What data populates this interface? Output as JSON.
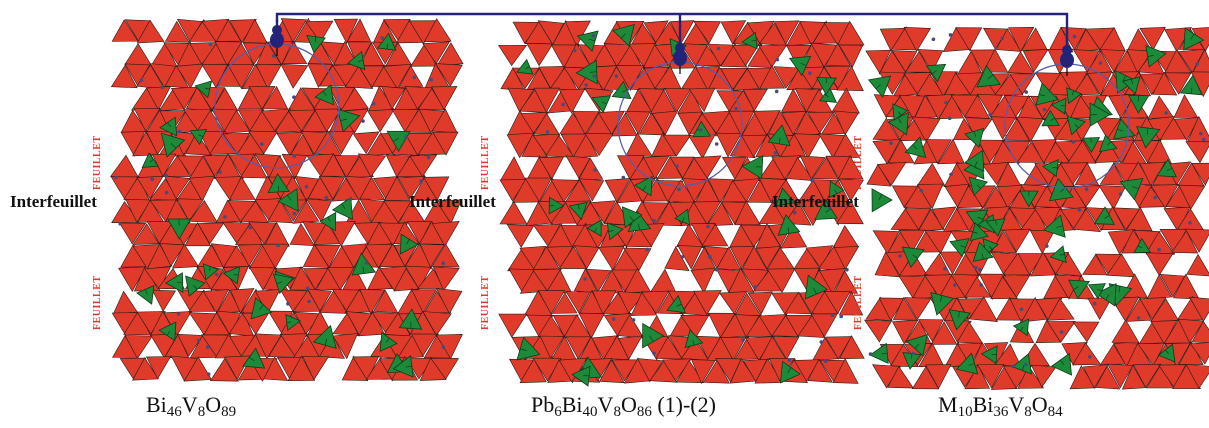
{
  "panels": [
    {
      "caption": {
        "base": [
          [
            "Bi",
            "46"
          ],
          [
            "V",
            "8"
          ],
          [
            "O",
            "89"
          ]
        ],
        "suffix": ""
      },
      "interlayer_label": "Interfeuillet",
      "layer_label": "FEUILLET"
    },
    {
      "caption": {
        "base": [
          [
            "Pb",
            "6"
          ],
          [
            "Bi",
            "40"
          ],
          [
            "V",
            "8"
          ],
          [
            "O",
            "86"
          ]
        ],
        "suffix": " (1)-(2)"
      },
      "interlayer_label": "Interfeuillet",
      "layer_label": "FEUILLET"
    },
    {
      "caption": {
        "base": [
          [
            "M",
            "10"
          ],
          [
            "Bi",
            "36"
          ],
          [
            "V",
            "8"
          ],
          [
            "O",
            "84"
          ]
        ],
        "suffix": ""
      },
      "interlayer_label": "Interfeuillet",
      "layer_label": "FEUILLET"
    }
  ],
  "colors": {
    "bi_polyhedra": "#e03a2a",
    "vo4_tetrahedra": "#1d8a3a",
    "connector": "#23237a",
    "circle": "#5a5aa8",
    "edge": "#2a1a1a"
  },
  "icons": [
    "guitar-icon"
  ]
}
